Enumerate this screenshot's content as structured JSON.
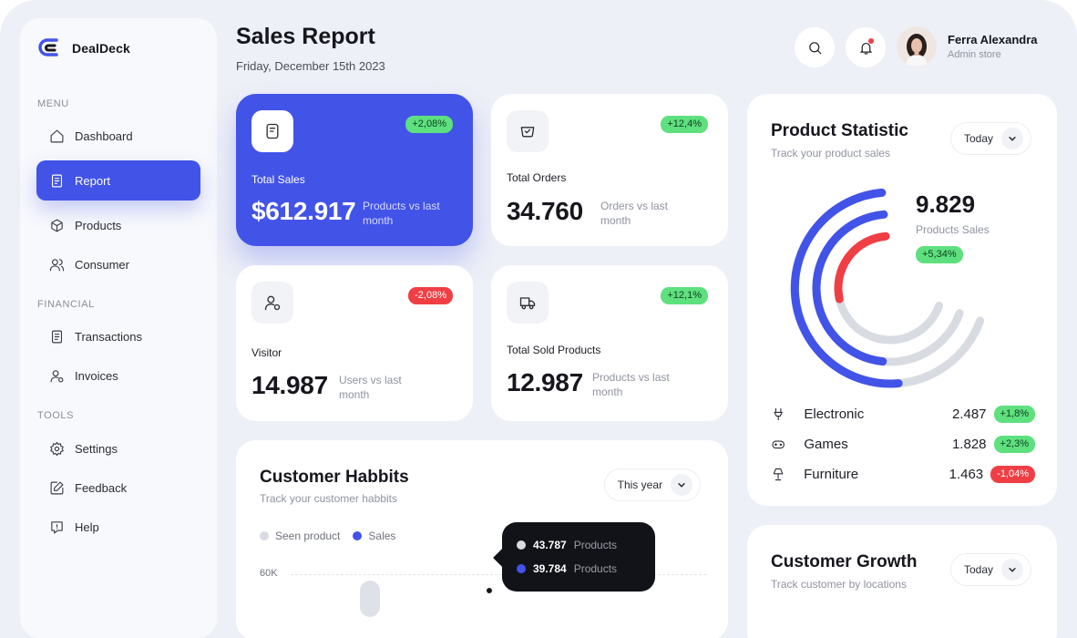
{
  "app": {
    "name": "DealDeck"
  },
  "colors": {
    "accent": "#4253e8",
    "positive": "#5ee07f",
    "negative": "#ef3f45",
    "background": "#eef0f7",
    "ring_muted": "#d9dbe3",
    "ring_red": "#ef3f45"
  },
  "sidebar": {
    "sections": [
      {
        "label": "MENU",
        "items": [
          {
            "label": "Dashboard",
            "icon": "home-icon"
          },
          {
            "label": "Report",
            "icon": "report-icon",
            "active": true
          },
          {
            "label": "Products",
            "icon": "box-icon"
          },
          {
            "label": "Consumer",
            "icon": "users-icon"
          }
        ]
      },
      {
        "label": "FINANCIAL",
        "items": [
          {
            "label": "Transactions",
            "icon": "receipt-icon"
          },
          {
            "label": "Invoices",
            "icon": "user-gear-icon"
          }
        ]
      },
      {
        "label": "TOOLS",
        "items": [
          {
            "label": "Settings",
            "icon": "gear-icon"
          },
          {
            "label": "Feedback",
            "icon": "edit-icon"
          },
          {
            "label": "Help",
            "icon": "help-icon"
          }
        ]
      }
    ]
  },
  "header": {
    "title": "Sales Report",
    "date": "Friday, December 15th 2023",
    "user": {
      "name": "Ferra Alexandra",
      "role": "Admin store"
    }
  },
  "stats": [
    {
      "label": "Total Sales",
      "value": "$612.917",
      "note": "Products vs last month",
      "change": "+2,08%",
      "trend": "up",
      "icon": "clipboard-icon"
    },
    {
      "label": "Total Orders",
      "value": "34.760",
      "note": "Orders vs last month",
      "change": "+12,4%",
      "trend": "up",
      "icon": "cart-icon"
    },
    {
      "label": "Visitor",
      "value": "14.987",
      "note": "Users vs last month",
      "change": "-2,08%",
      "trend": "down",
      "icon": "visitor-icon"
    },
    {
      "label": "Total Sold Products",
      "value": "12.987",
      "note": "Products vs last month",
      "change": "+12,1%",
      "trend": "up",
      "icon": "truck-icon"
    }
  ],
  "habits": {
    "title": "Customer Habbits",
    "subtitle": "Track your customer habbits",
    "period": "This year",
    "legend": [
      {
        "label": "Seen product",
        "color": "#d9dbe3"
      },
      {
        "label": "Sales",
        "color": "#4253e8"
      }
    ],
    "y_tick": "60K",
    "tooltip": [
      {
        "value": "43.787",
        "unit": "Products",
        "color": "#d9dbe3"
      },
      {
        "value": "39.784",
        "unit": "Products",
        "color": "#4253e8"
      }
    ]
  },
  "product_statistic": {
    "title": "Product Statistic",
    "subtitle": "Track your product sales",
    "period": "Today",
    "total": "9.829",
    "total_label": "Products Sales",
    "total_change": "+5,34%",
    "ring_fractions": [
      0.5,
      0.47,
      0.27
    ],
    "categories": [
      {
        "name": "Electronic",
        "value": "2.487",
        "change": "+1,8%",
        "trend": "up",
        "icon": "gamepad-icon"
      },
      {
        "name": "Games",
        "value": "1.828",
        "change": "+2,3%",
        "trend": "up",
        "icon": "joystick-icon"
      },
      {
        "name": "Furniture",
        "value": "1.463",
        "change": "-1,04%",
        "trend": "down",
        "icon": "lamp-icon"
      }
    ]
  },
  "customer_growth": {
    "title": "Customer Growth",
    "subtitle": "Track customer by locations",
    "period": "Today"
  }
}
